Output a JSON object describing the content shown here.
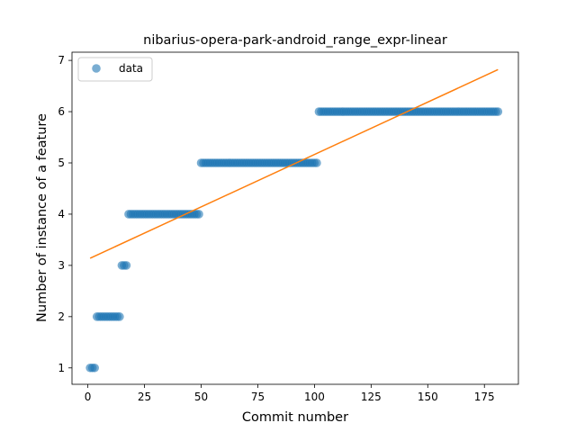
{
  "chart_data": {
    "type": "scatter",
    "title": "nibarius-opera-park-android_range_expr-linear",
    "xlabel": "Commit number",
    "ylabel": "Number of instance of a feature",
    "xlim": [
      -7,
      190
    ],
    "ylim": [
      0.68,
      7.16
    ],
    "xticks": [
      0,
      25,
      50,
      75,
      100,
      125,
      150,
      175
    ],
    "yticks": [
      1,
      2,
      3,
      4,
      5,
      6,
      7
    ],
    "grid": false,
    "legend_position": "top-left",
    "series": [
      {
        "name": "data",
        "kind": "points",
        "color": "#1f77b4",
        "segments": [
          {
            "x_start": 1,
            "x_end": 3,
            "y": 1
          },
          {
            "x_start": 4,
            "x_end": 14,
            "y": 2
          },
          {
            "x_start": 15,
            "x_end": 17,
            "y": 3
          },
          {
            "x_start": 18,
            "x_end": 49,
            "y": 4
          },
          {
            "x_start": 50,
            "x_end": 101,
            "y": 5
          },
          {
            "x_start": 102,
            "x_end": 181,
            "y": 6
          }
        ]
      },
      {
        "kind": "line",
        "color": "#ff7f0e",
        "x": [
          1,
          181
        ],
        "y": [
          3.14,
          6.82
        ]
      }
    ]
  }
}
